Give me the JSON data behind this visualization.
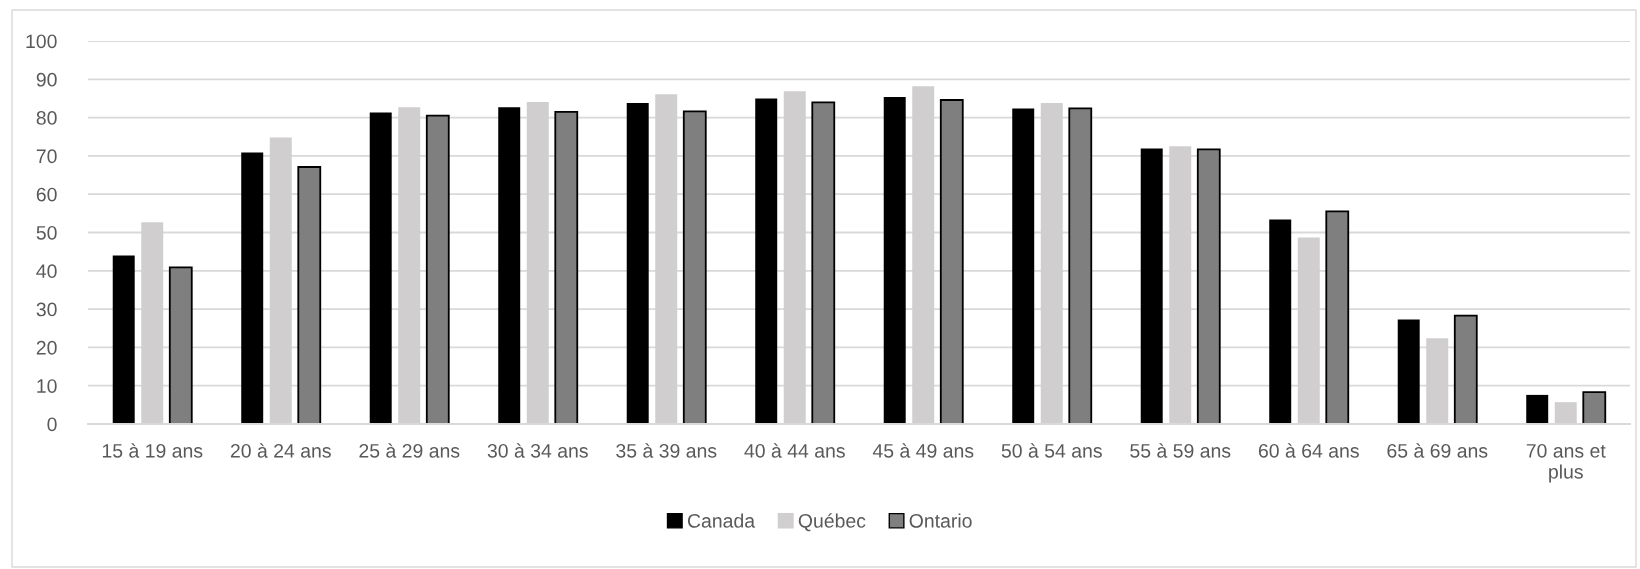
{
  "chart_data": {
    "type": "bar",
    "categories": [
      "15 à 19 ans",
      "20 à 24 ans",
      "25 à 29 ans",
      "30 à 34 ans",
      "35 à 39 ans",
      "40 à 44 ans",
      "45 à 49 ans",
      "50 à 54 ans",
      "55 à 59 ans",
      "60 à 64 ans",
      "65 à 69 ans",
      "70 ans et plus"
    ],
    "series": [
      {
        "name": "Canada",
        "color": "#000000",
        "values": [
          44.0,
          70.9,
          81.3,
          82.7,
          83.8,
          85.0,
          85.4,
          82.4,
          71.9,
          53.4,
          27.3,
          7.6
        ]
      },
      {
        "name": "Québec",
        "color": "#d0cece",
        "values": [
          52.7,
          74.8,
          82.7,
          84.1,
          86.1,
          86.9,
          88.2,
          83.8,
          72.5,
          48.7,
          22.4,
          5.7
        ]
      },
      {
        "name": "Ontario",
        "color": "#7f7f7f",
        "values": [
          40.9,
          67.1,
          80.5,
          81.5,
          81.6,
          84.0,
          84.6,
          82.4,
          71.7,
          55.5,
          28.3,
          8.3
        ]
      }
    ],
    "ylim": [
      0,
      100
    ],
    "yticks": [
      0,
      10,
      20,
      30,
      40,
      50,
      60,
      70,
      80,
      90,
      100
    ],
    "grid": "y",
    "legend": "bottom"
  }
}
